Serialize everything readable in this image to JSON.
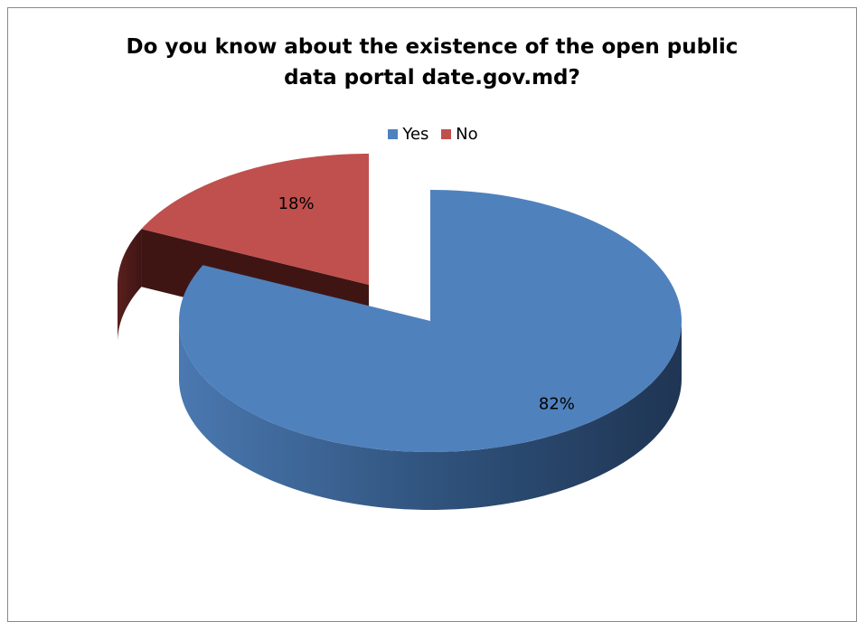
{
  "chart_data": {
    "type": "pie",
    "title_lines": [
      "Do you know about the existence of the open public",
      "data portal date.gov.md?"
    ],
    "categories": [
      "Yes",
      "No"
    ],
    "values": [
      82,
      18
    ],
    "data_labels": [
      "82%",
      "18%"
    ],
    "colors": {
      "Yes": {
        "top": "#4f81bd",
        "side_light": "#4a78b0",
        "side_dark": "#1f3553"
      },
      "No": {
        "top": "#c0504d",
        "side_light": "#5a1f1d",
        "side_dark": "#3f1514"
      }
    },
    "legend_position": "top",
    "exploded": "No",
    "style": "3d"
  },
  "legend": {
    "items": [
      {
        "label": "Yes",
        "color": "#4f81bd"
      },
      {
        "label": "No",
        "color": "#c0504d"
      }
    ]
  }
}
